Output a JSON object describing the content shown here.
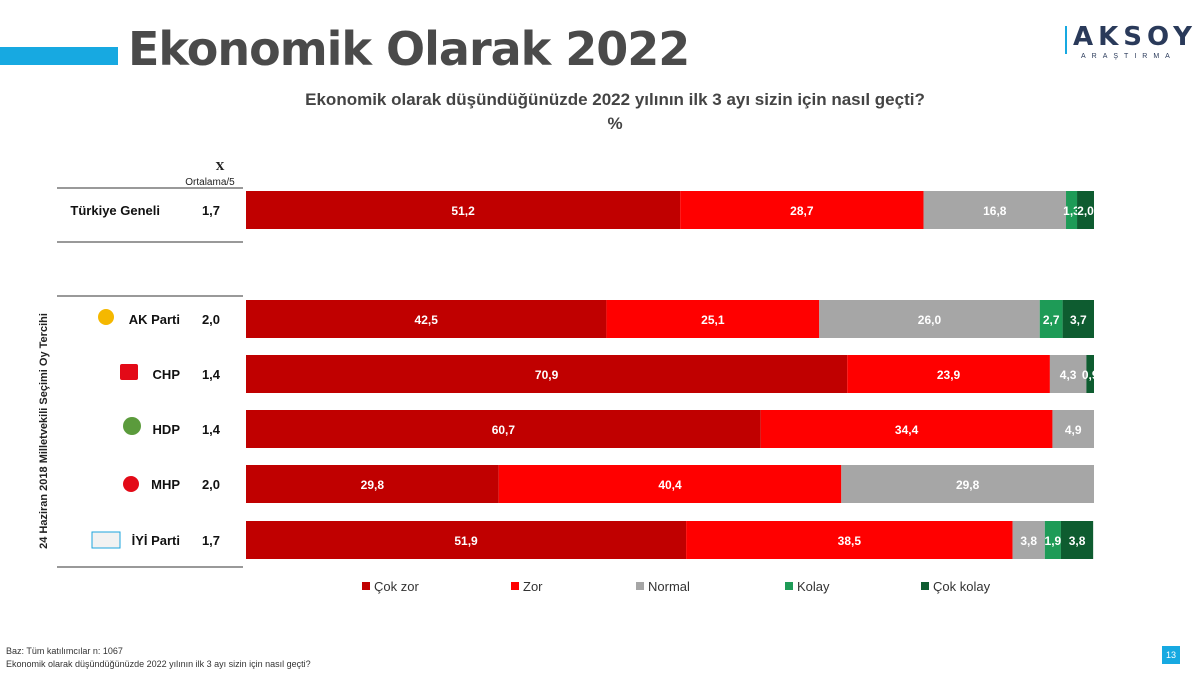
{
  "page": {
    "title": "Ekonomik Olarak 2022",
    "logo_text": "AKSOY",
    "logo_sub": "ARAŞTIRMA",
    "question": "Ekonomik olarak düşündüğünüzde 2022 yılının ilk 3 ayı sizin için nasıl geçti?",
    "unit": "%",
    "base_note": "Baz: Tüm katılımcılar n: 1067",
    "footnote": "Ekonomik olarak düşündüğünüzde 2022 yılının ilk 3 ayı sizin için nasıl geçti?",
    "page_number": "13",
    "accent_color": "#17A9E1"
  },
  "chart_data": {
    "type": "bar",
    "orientation": "horizontal",
    "stacked": true,
    "mean_header_symbol": "X",
    "mean_header": "Ortalama/5",
    "group_label": "24 Haziran 2018 Milletvekili Seçimi Oy Tercihi",
    "categories": [
      "Türkiye Geneli",
      "AK Parti",
      "CHP",
      "HDP",
      "MHP",
      "İYİ Parti"
    ],
    "category_icons": [
      null,
      "ak-parti-logo-icon",
      "chp-logo-icon",
      "hdp-logo-icon",
      "mhp-logo-icon",
      "iyi-parti-logo-icon"
    ],
    "means": [
      "1,7",
      "2,0",
      "1,4",
      "1,4",
      "2,0",
      "1,7"
    ],
    "series": [
      {
        "name": "Çok zor",
        "color": "#C00000",
        "values": [
          51.2,
          42.5,
          70.9,
          60.7,
          29.8,
          51.9
        ]
      },
      {
        "name": "Zor",
        "color": "#FF0000",
        "values": [
          28.7,
          25.1,
          23.9,
          34.4,
          40.4,
          38.5
        ]
      },
      {
        "name": "Normal",
        "color": "#A6A6A6",
        "values": [
          16.8,
          26.0,
          4.3,
          4.9,
          29.8,
          3.8
        ]
      },
      {
        "name": "Kolay",
        "color": "#1E9B57",
        "values": [
          1.3,
          2.7,
          0.0,
          0.0,
          0.0,
          1.9
        ]
      },
      {
        "name": "Çok kolay",
        "color": "#0E5C30",
        "values": [
          2.0,
          3.7,
          0.9,
          0.0,
          0.0,
          3.8
        ]
      }
    ],
    "xlim": [
      0,
      100
    ],
    "legend_position": "bottom",
    "grid": false
  }
}
